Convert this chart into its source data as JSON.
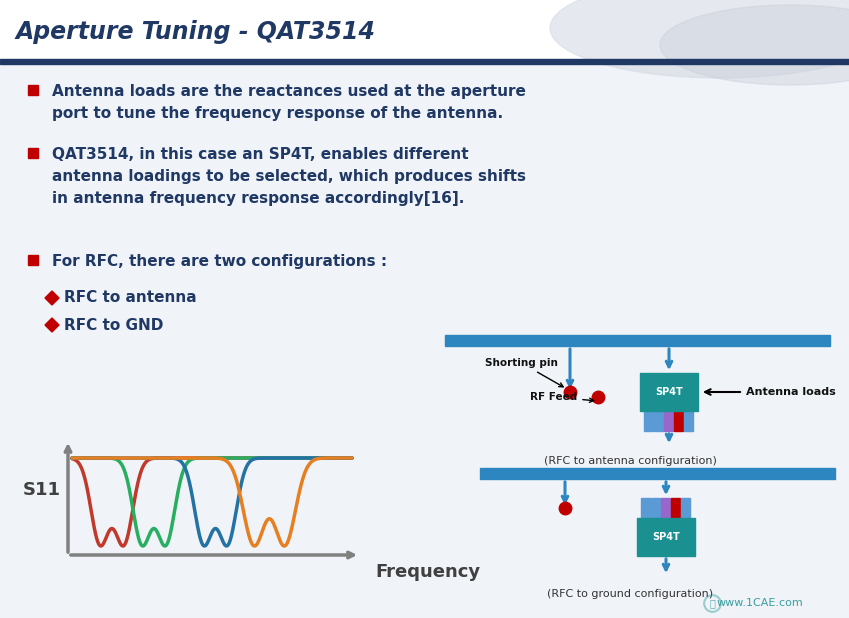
{
  "title": "Aperture Tuning - QAT3514",
  "title_color": "#1F3864",
  "divider_color": "#1F3864",
  "bg_color": "#F0F3F7",
  "content_bg": "#F0F3F7",
  "bullet_color": "#C00000",
  "diamond_color": "#C00000",
  "text_color": "#1F3864",
  "bullet1": "Antenna loads are the reactances used at the aperture\nport to tune the frequency response of the antenna.",
  "bullet2": "QAT3514, in this case an SP4T, enables different\nantenna loadings to be selected, which produces shifts\nin antenna frequency response accordingly[16].",
  "bullet3": "For RFC, there are two configurations :",
  "sub1": "RFC to antenna",
  "sub2": "RFC to GND",
  "s11_label": "S11",
  "freq_label": "Frequency",
  "caption1": "(RFC to antenna configuration)",
  "caption2": "(RFC to ground configuration)",
  "shorting_pin_label": "Shorting pin",
  "rf_feed_label": "RF Feed",
  "antenna_loads_label": "Antenna loads",
  "sp4t_label": "SP4T",
  "blue_bar_color": "#2E86C1",
  "sp4t_color": "#1A9090",
  "curve_colors": [
    "#C0392B",
    "#27AE60",
    "#2471A3",
    "#E67E22"
  ],
  "pin_colors": [
    "#5B9BD5",
    "#5B9BD5",
    "#9966CC",
    "#C00000",
    "#5B9BD5"
  ],
  "watermark": "www.1CAE.com",
  "arrow_color": "#2E86C1",
  "axis_color": "#808080"
}
